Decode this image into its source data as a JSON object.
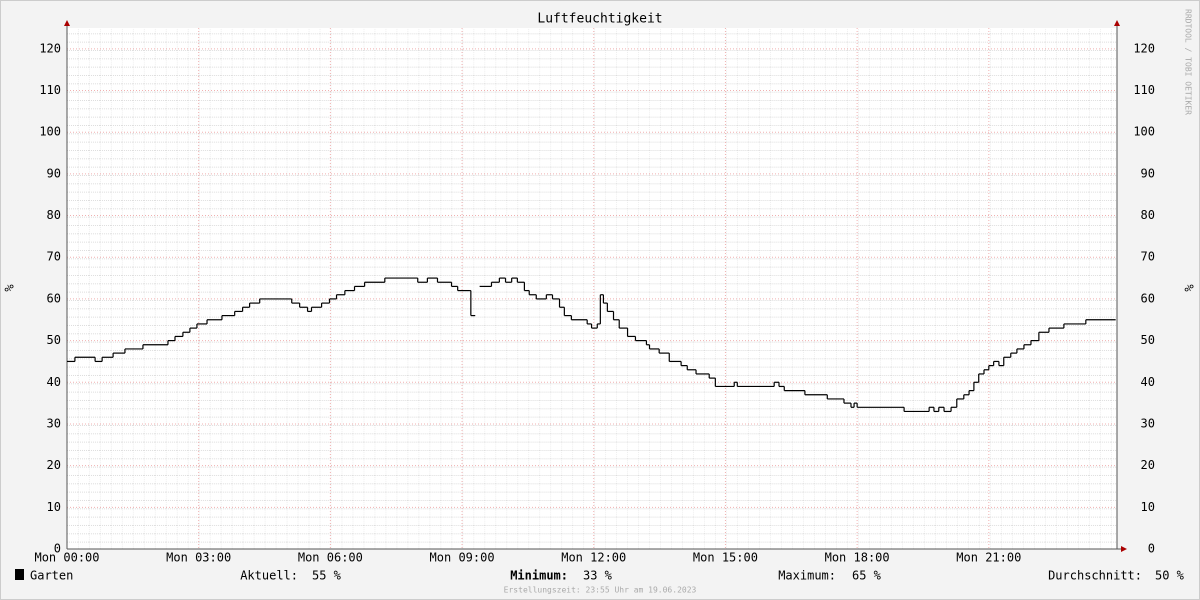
{
  "chart_data": {
    "type": "line",
    "title": "Luftfeuchtigkeit",
    "y_label": "%",
    "watermark": "RRDTOOL / TOBI OETIKER",
    "footer": "Erstellungszeit: 23:55 Uhr am 19.06.2023",
    "x": [
      0.0,
      0.18,
      0.64,
      0.8,
      1.05,
      1.32,
      1.73,
      2.3,
      2.46,
      2.64,
      2.8,
      2.96,
      3.19,
      3.53,
      3.82,
      4.0,
      4.16,
      4.39,
      5.12,
      5.3,
      5.48,
      5.57,
      5.8,
      5.98,
      6.14,
      6.33,
      6.55,
      6.78,
      7.24,
      7.99,
      8.21,
      8.44,
      8.76,
      8.9,
      9.18,
      9.2,
      9.3,
      9.4,
      9.67,
      9.85,
      9.99,
      10.13,
      10.26,
      10.42,
      10.53,
      10.69,
      10.92,
      11.06,
      11.22,
      11.33,
      11.49,
      11.85,
      11.95,
      12.08,
      12.15,
      12.22,
      12.31,
      12.45,
      12.58,
      12.77,
      12.95,
      13.2,
      13.27,
      13.49,
      13.72,
      13.99,
      14.13,
      14.33,
      14.63,
      14.77,
      15.2,
      15.27,
      16.11,
      16.22,
      16.34,
      16.81,
      17.32,
      17.7,
      17.86,
      17.93,
      18.0,
      19.07,
      19.64,
      19.75,
      19.86,
      19.98,
      20.14,
      20.27,
      20.43,
      20.55,
      20.66,
      20.77,
      20.89,
      21.0,
      21.11,
      21.23,
      21.34,
      21.5,
      21.64,
      21.8,
      21.96,
      22.14,
      22.37,
      22.71,
      23.21,
      23.89
    ],
    "series": [
      {
        "name": "Garten",
        "color": "#000000",
        "values": [
          45,
          46,
          45,
          46,
          47,
          48,
          49,
          50,
          51,
          52,
          53,
          54,
          55,
          56,
          57,
          58,
          59,
          60,
          59,
          58,
          57,
          58,
          59,
          60,
          61,
          62,
          63,
          64,
          65,
          64,
          65,
          64,
          63,
          62,
          62,
          56,
          null,
          63,
          64,
          65,
          64,
          65,
          64,
          62,
          61,
          60,
          61,
          60,
          58,
          56,
          55,
          54,
          53,
          54,
          61,
          59,
          57,
          55,
          53,
          51,
          50,
          49,
          48,
          47,
          45,
          44,
          43,
          42,
          41,
          39,
          40,
          39,
          40,
          39,
          38,
          37,
          36,
          35,
          34,
          35,
          34,
          33,
          34,
          33,
          34,
          33,
          34,
          36,
          37,
          38,
          40,
          42,
          43,
          44,
          45,
          44,
          46,
          47,
          48,
          49,
          50,
          52,
          53,
          54,
          55,
          55
        ]
      }
    ],
    "xlim": [
      0,
      23.92
    ],
    "xticks": [
      {
        "value": 0,
        "label": "Mon 00:00"
      },
      {
        "value": 3,
        "label": "Mon 03:00"
      },
      {
        "value": 6,
        "label": "Mon 06:00"
      },
      {
        "value": 9,
        "label": "Mon 09:00"
      },
      {
        "value": 12,
        "label": "Mon 12:00"
      },
      {
        "value": 15,
        "label": "Mon 15:00"
      },
      {
        "value": 18,
        "label": "Mon 18:00"
      },
      {
        "value": 21,
        "label": "Mon 21:00"
      }
    ],
    "ylim": [
      0,
      125
    ],
    "yticks": [
      0,
      10,
      20,
      30,
      40,
      50,
      60,
      70,
      80,
      90,
      100,
      110,
      120
    ],
    "grid": true,
    "stats": {
      "labels": [
        "Aktuell:",
        "Minimum:",
        "Maximum:",
        "Durchschnitt:"
      ],
      "values": [
        55,
        33,
        65,
        50
      ],
      "value_labels": [
        "55 %",
        "33 %",
        "65 %",
        "50 %"
      ]
    }
  }
}
